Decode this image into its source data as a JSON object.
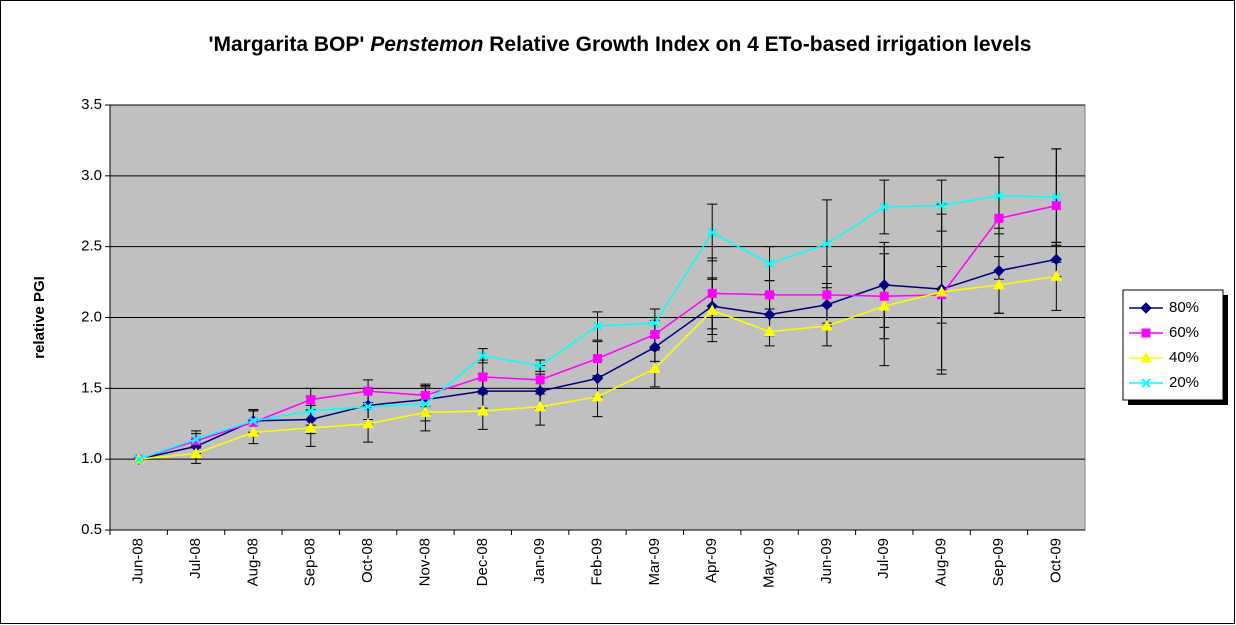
{
  "chart_data": {
    "type": "line",
    "title": {
      "before": "'Margarita BOP'",
      "italic": "Penstemon",
      "after": "Relative Growth Index on 4 ETo-based irrigation levels"
    },
    "y_label": "relative PGI",
    "categories": [
      "Jun-08",
      "Jul-08",
      "Aug-08",
      "Sep-08",
      "Oct-08",
      "Nov-08",
      "Dec-08",
      "Jan-09",
      "Feb-09",
      "Mar-09",
      "Apr-09",
      "May-09",
      "Jun-09",
      "Jul-09",
      "Aug-09",
      "Sep-09",
      "Oct-09"
    ],
    "ylim": [
      0.5,
      3.5
    ],
    "yticks": [
      {
        "value": 0.5,
        "label": "0.5"
      },
      {
        "value": 1,
        "label": "1.0"
      },
      {
        "value": 1.5,
        "label": "1.5"
      },
      {
        "value": 2,
        "label": "2.0"
      },
      {
        "value": 2.5,
        "label": "2.5"
      },
      {
        "value": 3,
        "label": "3.0"
      },
      {
        "value": 3.5,
        "label": "3.5"
      }
    ],
    "grid": true,
    "background": "#c0c0c0",
    "legend": "right",
    "series": [
      {
        "name": "80%",
        "color": "#000080",
        "marker": "diamond",
        "values": [
          1.0,
          1.09,
          1.27,
          1.28,
          1.38,
          1.42,
          1.48,
          1.48,
          1.57,
          1.79,
          2.08,
          2.02,
          2.09,
          2.23,
          2.2,
          2.33,
          2.41
        ],
        "errors": [
          0,
          0.05,
          0.08,
          0.1,
          0.1,
          0.1,
          0.12,
          0.12,
          0.13,
          0.1,
          0.2,
          0.15,
          0.15,
          0.3,
          0.6,
          0.3,
          0.12
        ]
      },
      {
        "name": "60%",
        "color": "#ff00ff",
        "marker": "square",
        "values": [
          1.0,
          1.13,
          1.26,
          1.42,
          1.48,
          1.45,
          1.58,
          1.56,
          1.71,
          1.88,
          2.17,
          2.16,
          2.16,
          2.15,
          2.16,
          2.7,
          2.79
        ],
        "errors": [
          0,
          0.05,
          0.08,
          0.08,
          0.08,
          0.08,
          0.12,
          0.1,
          0.12,
          0.1,
          0.25,
          0.1,
          0.2,
          0.3,
          0.2,
          0.43,
          0.4
        ]
      },
      {
        "name": "40%",
        "color": "#ffff00",
        "marker": "triangle",
        "values": [
          1.0,
          1.04,
          1.19,
          1.22,
          1.25,
          1.33,
          1.34,
          1.37,
          1.44,
          1.64,
          2.05,
          1.9,
          1.94,
          2.08,
          2.18,
          2.23,
          2.29
        ],
        "errors": [
          0,
          0.07,
          0.08,
          0.13,
          0.13,
          0.13,
          0.13,
          0.13,
          0.14,
          0.13,
          0.22,
          0.1,
          0.14,
          0.42,
          0.55,
          0.2,
          0.24
        ]
      },
      {
        "name": "20%",
        "color": "#00ffff",
        "marker": "x",
        "values": [
          1.0,
          1.14,
          1.27,
          1.34,
          1.37,
          1.39,
          1.73,
          1.66,
          1.94,
          1.96,
          2.6,
          2.38,
          2.52,
          2.78,
          2.79,
          2.86,
          2.85
        ],
        "errors": [
          0,
          0.06,
          0.08,
          0.1,
          0.12,
          0.12,
          0.05,
          0.04,
          0.1,
          0.1,
          0.2,
          0.12,
          0.31,
          0.19,
          0.18,
          0.27,
          0.34
        ]
      }
    ]
  }
}
